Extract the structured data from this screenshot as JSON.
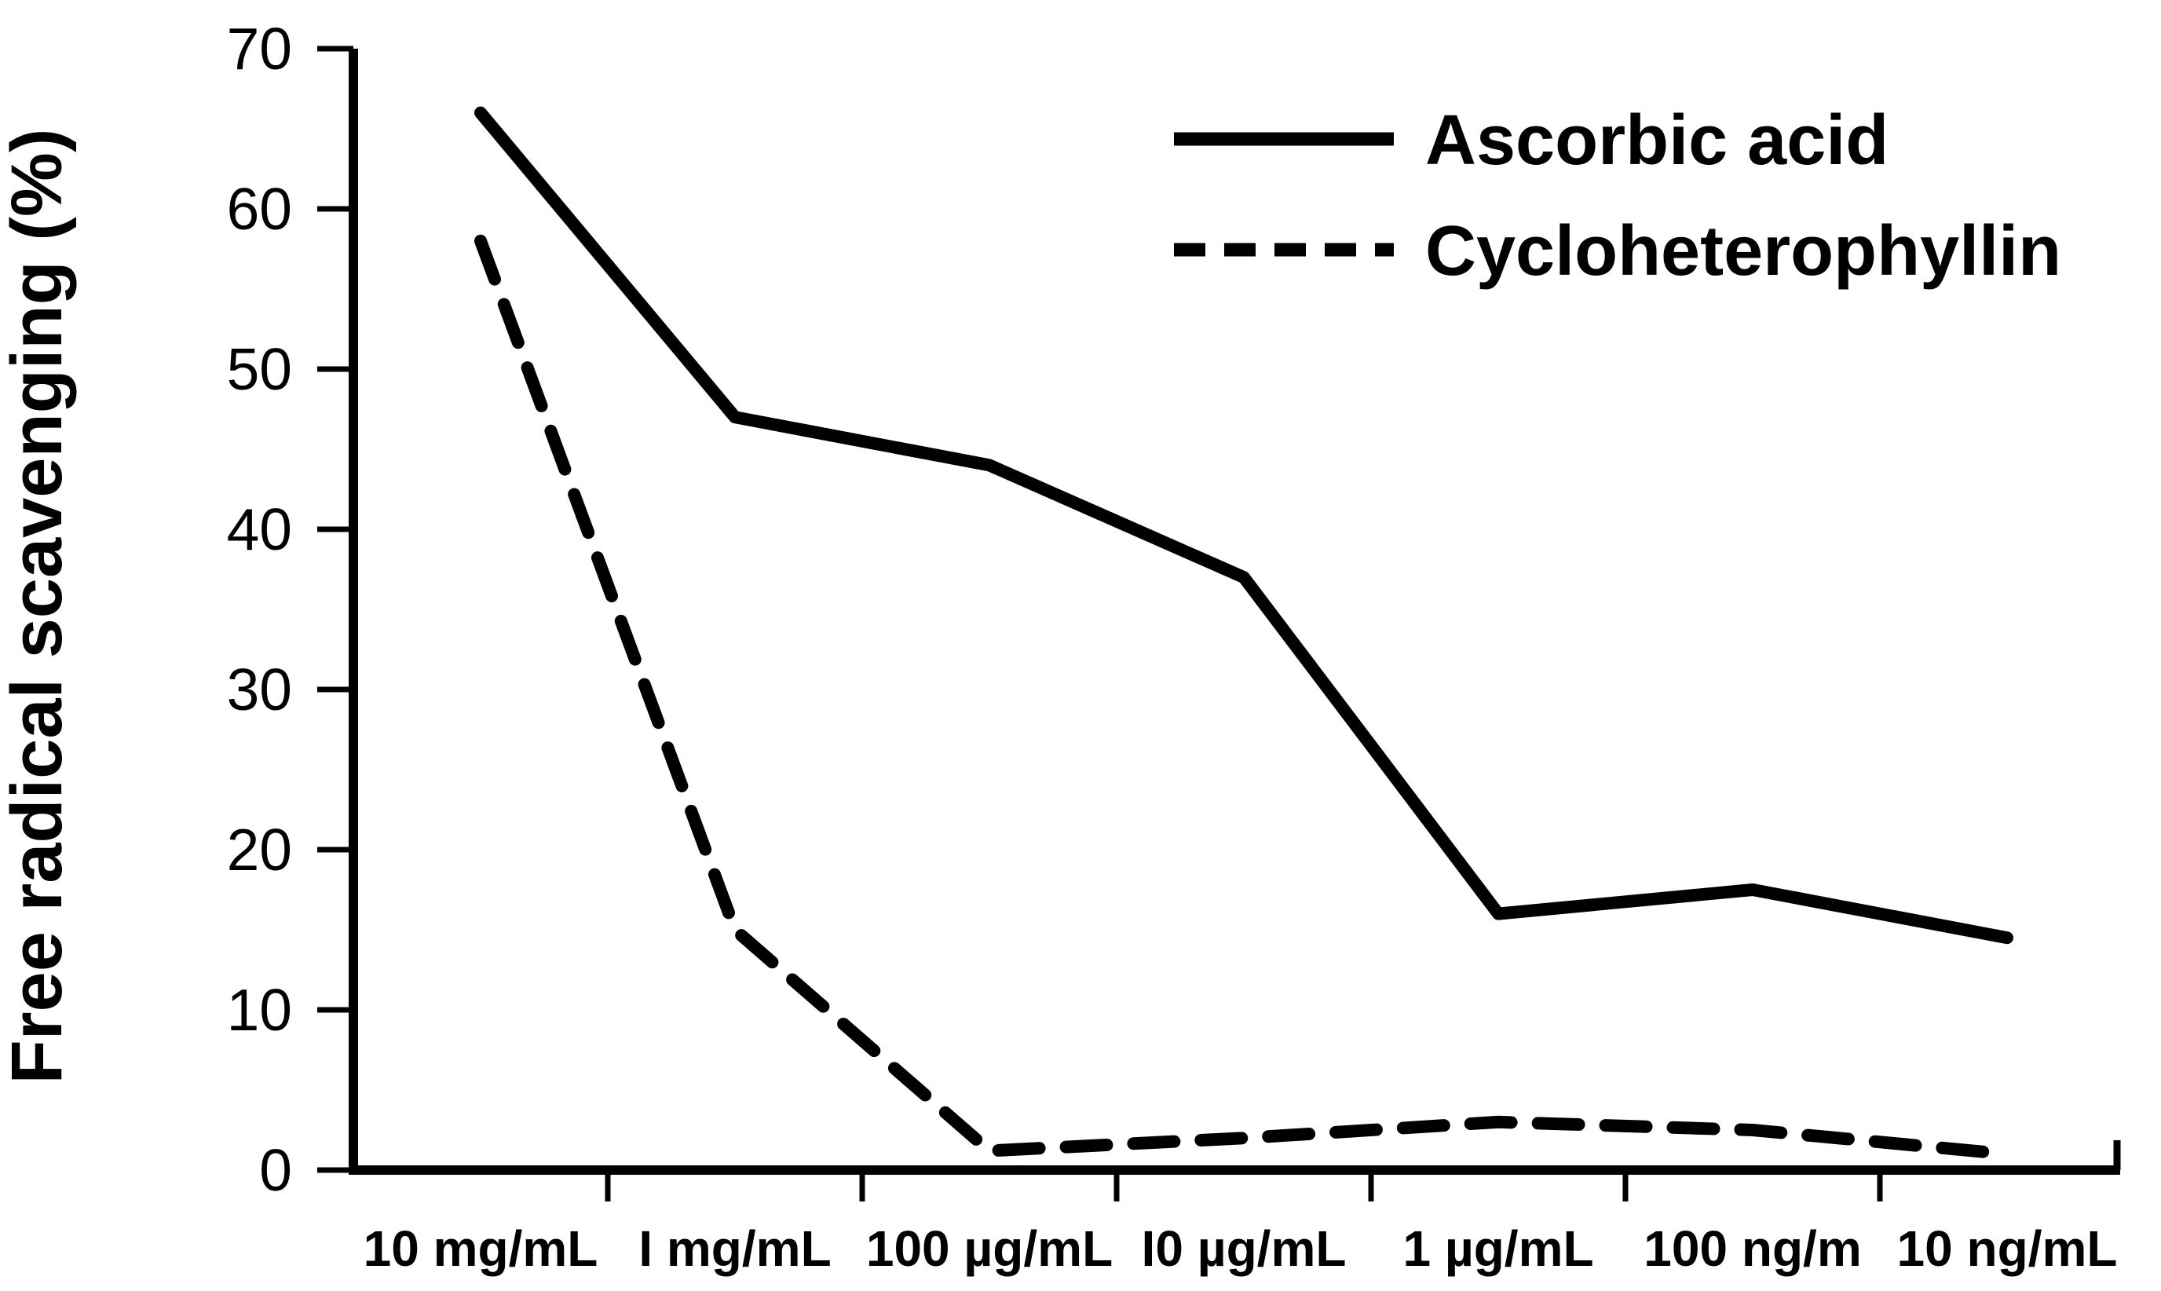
{
  "chart_data": {
    "type": "line",
    "title": "",
    "xlabel": "",
    "ylabel": "Free radical scavenging (%)",
    "categories": [
      "10 mg/mL",
      "I mg/mL",
      "100 µg/mL",
      "I0 µg/mL",
      "1 µg/mL",
      "100 ng/m",
      "10 ng/mL"
    ],
    "series": [
      {
        "name": "Ascorbic acid",
        "style": "solid",
        "values": [
          66,
          47,
          44,
          37,
          16,
          17.5,
          14.5
        ]
      },
      {
        "name": "Cycloheterophyllin",
        "style": "dashed",
        "values": [
          58,
          15,
          1.2,
          2,
          3,
          2.5,
          1
        ]
      }
    ],
    "ylim": [
      0,
      70
    ],
    "yticks": [
      0,
      10,
      20,
      30,
      40,
      50,
      60,
      70
    ],
    "grid": false,
    "legend_position": "top-right",
    "line_color": "#000000",
    "axis_color": "#000000",
    "background": "#ffffff"
  }
}
